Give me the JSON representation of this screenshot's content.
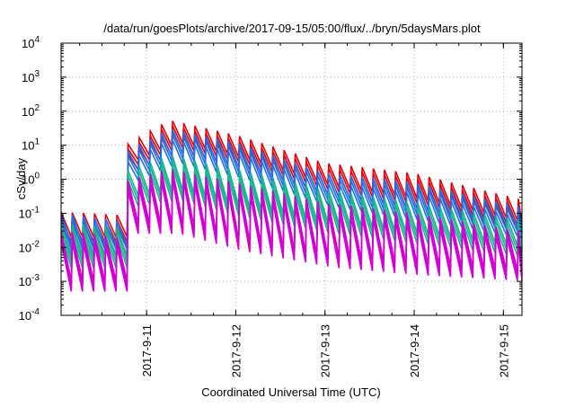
{
  "chart_data": {
    "type": "line",
    "title": "/data/run/goesPlots/archive/2017-09-15/05:00/flux/../bryn/5daysMars.plot",
    "xlabel": "Coordinated Universal Time (UTC)",
    "ylabel": "cSv/day",
    "y_scale": "log",
    "ylim": [
      0.0001,
      10000
    ],
    "xlim": [
      "2017-09-10 01:00",
      "2017-09-15 05:00"
    ],
    "x_ticks": [
      "2017-9-11",
      "2017-9-12",
      "2017-9-13",
      "2017-9-14",
      "2017-9-15"
    ],
    "y_ticks": [
      {
        "base": "10",
        "exp": "-4"
      },
      {
        "base": "10",
        "exp": "-3"
      },
      {
        "base": "10",
        "exp": "-2"
      },
      {
        "base": "10",
        "exp": "-1"
      },
      {
        "base": "10",
        "exp": "0"
      },
      {
        "base": "10",
        "exp": "1"
      },
      {
        "base": "10",
        "exp": "2"
      },
      {
        "base": "10",
        "exp": "3"
      },
      {
        "base": "10",
        "exp": "4"
      }
    ],
    "grid": true,
    "legend": "none",
    "event_onset": "2017-09-10 16:00",
    "sawtooth_period_hours": 3,
    "series_envelopes": {
      "x": [
        "2017-09-10 01:00",
        "2017-09-10 16:00",
        "2017-09-10 17:00",
        "2017-09-11 06:00",
        "2017-09-12 00:00",
        "2017-09-13 00:00",
        "2017-09-14 00:00",
        "2017-09-15 05:00"
      ],
      "series": [
        {
          "color": "#e8000b",
          "peaks": [
            0.11,
            0.09,
            8,
            55,
            20,
            3,
            1.5,
            0.25
          ],
          "troughs": [
            0.02,
            0.02,
            3,
            12,
            4,
            0.6,
            0.25,
            0.05
          ]
        },
        {
          "color": "#1f6fe8",
          "peaks": [
            0.1,
            0.06,
            5,
            30,
            12,
            1.5,
            0.8,
            0.15
          ],
          "troughs": [
            0.012,
            0.012,
            1.5,
            6,
            2,
            0.3,
            0.12,
            0.035
          ]
        },
        {
          "color": "#16b58f",
          "peaks": [
            0.05,
            0.04,
            1.5,
            5,
            2,
            0.5,
            0.2,
            0.06
          ],
          "troughs": [
            0.005,
            0.005,
            0.3,
            0.5,
            0.15,
            0.05,
            0.025,
            0.01
          ]
        },
        {
          "color": "#d400d4",
          "peaks": [
            0.03,
            0.02,
            0.8,
            2,
            0.8,
            0.2,
            0.1,
            0.03
          ],
          "troughs": [
            0.001,
            0.001,
            0.05,
            0.05,
            0.015,
            0.005,
            0.003,
            0.002
          ]
        }
      ]
    }
  },
  "colors": {
    "frame": "#000000",
    "grid": "#b3b3b3",
    "background": "#ffffff"
  }
}
